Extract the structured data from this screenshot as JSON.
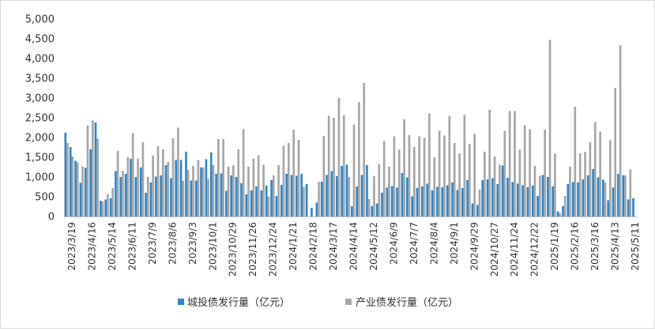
{
  "chart_data": {
    "type": "bar",
    "title": "",
    "xlabel": "",
    "ylabel": "",
    "ylim": [
      0,
      5000
    ],
    "yticks": [
      "0",
      "500",
      "1,000",
      "1,500",
      "2,000",
      "2,500",
      "3,000",
      "3,500",
      "4,000",
      "4,500",
      "5,000"
    ],
    "grid": false,
    "legend_position": "bottom",
    "tick_labels": [
      "2023/3/19",
      "2023/4/16",
      "2023/5/14",
      "2023/6/11",
      "2023/7/9",
      "2023/8/6",
      "2023/9/3",
      "2023/10/1",
      "2023/10/29",
      "2023/11/26",
      "2023/12/24",
      "2024/1/21",
      "2024/2/18",
      "2024/3/17",
      "2024/4/14",
      "2024/5/12",
      "2024/6/9",
      "2024/7/7",
      "2024/8/4",
      "2024/9/1",
      "2024/9/29",
      "2024/10/27",
      "2024/11/24",
      "2024/12/22",
      "2025/1/19",
      "2025/2/16",
      "2025/3/16",
      "2025/4/13",
      "2025/5/11"
    ],
    "series": [
      {
        "name": "城投债发行量（亿元）",
        "color": "#2f86c9",
        "values": [
          2120,
          1760,
          1410,
          850,
          1230,
          1700,
          2380,
          400,
          430,
          460,
          1150,
          1000,
          1080,
          1460,
          1000,
          1240,
          600,
          860,
          1010,
          1040,
          1300,
          970,
          1430,
          1430,
          1640,
          910,
          910,
          1240,
          1450,
          1620,
          1080,
          1090,
          650,
          1040,
          1000,
          840,
          560,
          660,
          760,
          660,
          780,
          920,
          520,
          800,
          1080,
          1050,
          1030,
          1080,
          820,
          220,
          350,
          880,
          1050,
          1150,
          1020,
          1280,
          1310,
          260,
          760,
          1050,
          1300,
          260,
          330,
          600,
          730,
          770,
          730,
          1100,
          990,
          510,
          720,
          760,
          830,
          660,
          750,
          740,
          790,
          860,
          670,
          720,
          920,
          330,
          290,
          920,
          940,
          970,
          820,
          1290,
          980,
          870,
          830,
          790,
          740,
          780,
          520,
          1050,
          1000,
          760,
          130,
          260,
          820,
          870,
          860,
          940,
          1040,
          1200,
          990,
          930,
          410,
          730,
          1080,
          1040,
          430,
          460
        ]
      },
      {
        "name": "产业债发行量（亿元）",
        "color": "#a6a6a6",
        "values": [
          1860,
          1520,
          1370,
          1260,
          2300,
          2430,
          1970,
          380,
          560,
          720,
          1660,
          1150,
          1500,
          2110,
          1470,
          1880,
          1000,
          1540,
          1780,
          1700,
          1380,
          1980,
          2250,
          900,
          1180,
          1280,
          1430,
          1240,
          950,
          1300,
          1960,
          1960,
          1260,
          1290,
          1700,
          2210,
          1260,
          1460,
          1550,
          1310,
          500,
          1040,
          1300,
          1790,
          1860,
          2200,
          1940,
          750,
          0,
          0,
          880,
          2040,
          2550,
          2500,
          3000,
          2560,
          1000,
          2330,
          2900,
          3380,
          440,
          1020,
          1320,
          1910,
          1260,
          2030,
          1690,
          2460,
          2060,
          1760,
          2030,
          1990,
          2610,
          1500,
          2170,
          2050,
          2540,
          1860,
          1600,
          2570,
          1840,
          2090,
          680,
          1640,
          2700,
          1520,
          1310,
          2170,
          2670,
          2670,
          1690,
          2310,
          2210,
          1280,
          1030,
          2200,
          4470,
          1590,
          80,
          520,
          1260,
          2780,
          1600,
          1640,
          1880,
          2390,
          2150,
          860,
          1930,
          3250,
          4330,
          1040,
          1190
        ]
      }
    ]
  }
}
